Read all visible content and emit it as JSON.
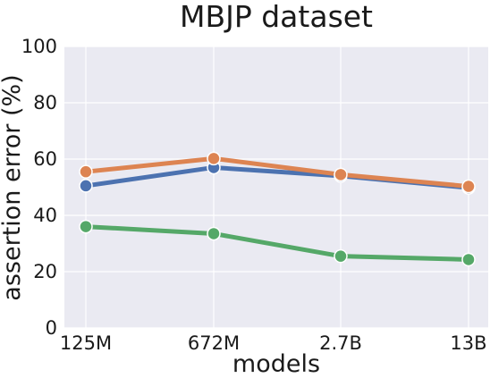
{
  "chart_data": {
    "type": "line",
    "title": "MBJP dataset",
    "xlabel": "models",
    "ylabel": "assertion error (%)",
    "categories": [
      "125M",
      "672M",
      "2.7B",
      "13B"
    ],
    "ylim": [
      0,
      100
    ],
    "yticks": [
      0,
      20,
      40,
      60,
      80,
      100
    ],
    "grid": true,
    "legend": "none",
    "series": [
      {
        "color": "#4c72b0",
        "values": [
          50.5,
          57.0,
          54.0,
          49.8
        ]
      },
      {
        "color": "#dd8452",
        "values": [
          55.5,
          60.2,
          54.5,
          50.3
        ]
      },
      {
        "color": "#55a868",
        "values": [
          36.0,
          33.5,
          25.5,
          24.3
        ]
      }
    ]
  }
}
